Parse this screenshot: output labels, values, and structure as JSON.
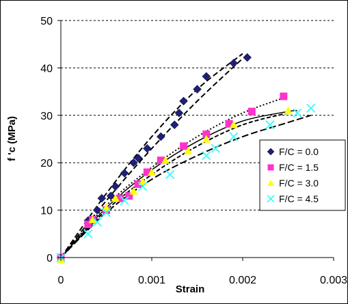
{
  "chart_data": {
    "type": "scatter",
    "title": "",
    "xlabel": "Strain",
    "ylabel": "f 'c (MPa)",
    "xlim": [
      0,
      0.003
    ],
    "ylim": [
      0,
      50
    ],
    "x_ticks": [
      "0",
      "0.001",
      "0.002",
      "0.003"
    ],
    "y_ticks": [
      "0",
      "10",
      "20",
      "30",
      "40",
      "50"
    ],
    "grid": "horizontal-dashed",
    "legend_position": "right",
    "series": [
      {
        "name": "F/C = 0.0",
        "color": "#1f1f7a",
        "marker": "diamond",
        "points": [
          [
            0,
            0
          ],
          [
            0.0003,
            7.8
          ],
          [
            0.0004,
            10
          ],
          [
            0.00045,
            12.5
          ],
          [
            0.00055,
            13
          ],
          [
            0.0006,
            15
          ],
          [
            0.0007,
            17.8
          ],
          [
            0.0008,
            20
          ],
          [
            0.00085,
            21
          ],
          [
            0.00095,
            23
          ],
          [
            0.0011,
            25.5
          ],
          [
            0.00125,
            28
          ],
          [
            0.0013,
            30.5
          ],
          [
            0.00135,
            33
          ],
          [
            0.0015,
            35.5
          ],
          [
            0.0016,
            38.2
          ],
          [
            0.0019,
            41
          ],
          [
            0.00205,
            42.2
          ]
        ],
        "fit_upper": [
          [
            0,
            0
          ],
          [
            0.0005,
            13.5
          ],
          [
            0.001,
            25.5
          ],
          [
            0.0015,
            35.5
          ],
          [
            0.002,
            43
          ]
        ],
        "fit_lower": [
          [
            0,
            0
          ],
          [
            0.0005,
            12
          ],
          [
            0.001,
            23
          ],
          [
            0.0015,
            33
          ],
          [
            0.002,
            42
          ]
        ]
      },
      {
        "name": "F/C = 1.5",
        "color": "#ff33cc",
        "marker": "square",
        "points": [
          [
            0,
            0
          ],
          [
            0.0003,
            7
          ],
          [
            0.00035,
            8
          ],
          [
            0.0005,
            10
          ],
          [
            0.00065,
            12.5
          ],
          [
            0.00075,
            13
          ],
          [
            0.00085,
            15.5
          ],
          [
            0.00095,
            18
          ],
          [
            0.0011,
            20.5
          ],
          [
            0.00135,
            23.5
          ],
          [
            0.0016,
            26
          ],
          [
            0.00185,
            28.2
          ],
          [
            0.0021,
            30.8
          ],
          [
            0.00245,
            34
          ]
        ],
        "fit_upper": [
          [
            0,
            0
          ],
          [
            0.0005,
            11
          ],
          [
            0.001,
            19
          ],
          [
            0.0015,
            25.5
          ],
          [
            0.002,
            30.5
          ],
          [
            0.0025,
            34
          ]
        ]
      },
      {
        "name": "F/C = 3.0",
        "color": "#ffff00",
        "marker": "triangle",
        "points": [
          [
            0,
            -0.5
          ],
          [
            0.00035,
            8
          ],
          [
            0.0005,
            10.5
          ],
          [
            0.0006,
            12.5
          ],
          [
            0.0008,
            14
          ],
          [
            0.0009,
            16
          ],
          [
            0.001,
            18
          ],
          [
            0.00115,
            20.5
          ],
          [
            0.0014,
            22.5
          ],
          [
            0.0016,
            25
          ],
          [
            0.0019,
            28
          ],
          [
            0.0025,
            31
          ]
        ],
        "fit_upper": [
          [
            0,
            0
          ],
          [
            0.0005,
            10
          ],
          [
            0.001,
            17.5
          ],
          [
            0.0015,
            23.5
          ],
          [
            0.002,
            28
          ],
          [
            0.0025,
            30.5
          ]
        ]
      },
      {
        "name": "F/C = 4.5",
        "color": "#33ffff",
        "marker": "x",
        "points": [
          [
            0,
            0
          ],
          [
            0.0003,
            5
          ],
          [
            0.0004,
            7.5
          ],
          [
            0.0005,
            9.5
          ],
          [
            0.0007,
            12
          ],
          [
            0.0009,
            15
          ],
          [
            0.0012,
            17.5
          ],
          [
            0.0016,
            21.5
          ],
          [
            0.0017,
            23
          ],
          [
            0.0019,
            25.5
          ],
          [
            0.0023,
            28
          ],
          [
            0.0026,
            30.5
          ],
          [
            0.00275,
            31.5
          ]
        ],
        "fit_upper": [
          [
            0,
            0
          ],
          [
            0.0005,
            9.5
          ],
          [
            0.001,
            16.5
          ],
          [
            0.0015,
            21.5
          ],
          [
            0.002,
            25.5
          ],
          [
            0.0025,
            28.5
          ],
          [
            0.00275,
            30
          ]
        ]
      }
    ],
    "fit_solid": [
      [
        0,
        0
      ],
      [
        0.0005,
        10.5
      ],
      [
        0.001,
        18.5
      ],
      [
        0.0015,
        24.5
      ],
      [
        0.002,
        28.8
      ],
      [
        0.0025,
        30.8
      ],
      [
        0.0026,
        31
      ]
    ]
  }
}
